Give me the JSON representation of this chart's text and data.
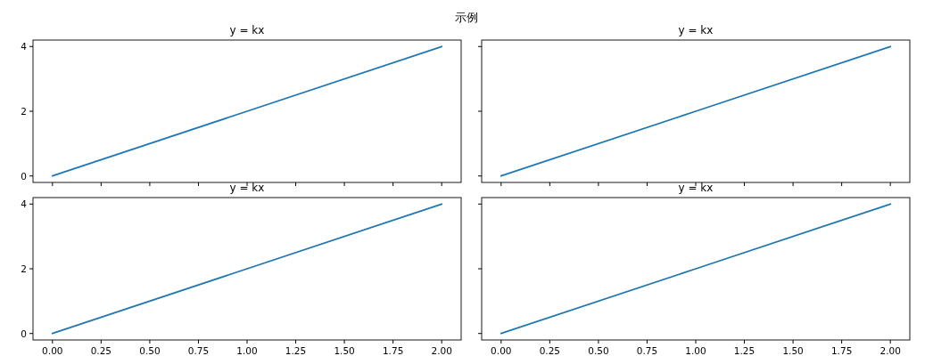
{
  "chart_data": [
    {
      "type": "line",
      "title": "y = kx",
      "annotations": [
        "示例"
      ],
      "x": [
        0,
        1,
        2
      ],
      "series": [
        {
          "color": "#1f77b4",
          "values": [
            0,
            2,
            4
          ]
        }
      ],
      "xlim": [
        -0.1,
        2.1
      ],
      "ylim": [
        -0.2,
        4.2
      ],
      "xticks": [
        {
          "value": 0,
          "label": null
        },
        {
          "value": 0.25,
          "label": null
        },
        {
          "value": 0.5,
          "label": null
        },
        {
          "value": 0.75,
          "label": null
        },
        {
          "value": 1,
          "label": null
        },
        {
          "value": 1.25,
          "label": null
        },
        {
          "value": 1.5,
          "label": null
        },
        {
          "value": 1.75,
          "label": null
        },
        {
          "value": 2,
          "label": null
        }
      ],
      "yticks": [
        0,
        2,
        4
      ],
      "tick_labels": "y"
    },
    {
      "type": "line",
      "title": "y = kx",
      "x": [
        0,
        1,
        2
      ],
      "series": [
        {
          "color": "#1f77b4",
          "values": [
            0,
            2,
            4
          ]
        }
      ],
      "xlim": [
        -0.1,
        2.1
      ],
      "ylim": [
        -0.2,
        4.2
      ],
      "xticks": [
        {
          "value": 0,
          "label": null
        },
        {
          "value": 0.25,
          "label": null
        },
        {
          "value": 0.5,
          "label": null
        },
        {
          "value": 0.75,
          "label": null
        },
        {
          "value": 1,
          "label": null
        },
        {
          "value": 1.25,
          "label": null
        },
        {
          "value": 1.5,
          "label": null
        },
        {
          "value": 1.75,
          "label": null
        },
        {
          "value": 2,
          "label": null
        }
      ],
      "yticks": [
        {
          "value": 0,
          "label": null
        },
        {
          "value": 2,
          "label": null
        },
        {
          "value": 4,
          "label": null
        }
      ],
      "tick_labels": false
    },
    {
      "type": "line",
      "title": "y = kx",
      "x": [
        0,
        1,
        2
      ],
      "series": [
        {
          "color": "#1f77b4",
          "values": [
            0,
            2,
            4
          ]
        }
      ],
      "xlim": [
        -0.1,
        2.1
      ],
      "ylim": [
        -0.2,
        4.2
      ],
      "xticks": [
        {
          "value": 0,
          "label": "0.00"
        },
        {
          "value": 0.25,
          "label": "0.25"
        },
        {
          "value": 0.5,
          "label": "0.50"
        },
        {
          "value": 0.75,
          "label": "0.75"
        },
        {
          "value": 1,
          "label": "1.00"
        },
        {
          "value": 1.25,
          "label": "1.25"
        },
        {
          "value": 1.5,
          "label": "1.50"
        },
        {
          "value": 1.75,
          "label": "1.75"
        },
        {
          "value": 2,
          "label": "2.00"
        }
      ],
      "yticks": [
        0,
        2,
        4
      ]
    },
    {
      "type": "line",
      "title": "y = kx",
      "x": [
        0,
        1,
        2
      ],
      "series": [
        {
          "color": "#1f77b4",
          "values": [
            0,
            2,
            4
          ]
        }
      ],
      "xlim": [
        -0.1,
        2.1
      ],
      "ylim": [
        -0.2,
        4.2
      ],
      "xticks": [
        {
          "value": 0,
          "label": "0.00"
        },
        {
          "value": 0.25,
          "label": "0.25"
        },
        {
          "value": 0.5,
          "label": "0.50"
        },
        {
          "value": 0.75,
          "label": "0.75"
        },
        {
          "value": 1,
          "label": "1.00"
        },
        {
          "value": 1.25,
          "label": "1.25"
        },
        {
          "value": 1.5,
          "label": "1.50"
        },
        {
          "value": 1.75,
          "label": "1.75"
        },
        {
          "value": 2,
          "label": "2.00"
        }
      ],
      "yticks": [
        {
          "value": 0,
          "label": null
        },
        {
          "value": 2,
          "label": null
        },
        {
          "value": 4,
          "label": null
        }
      ],
      "tick_labels": "x"
    }
  ]
}
